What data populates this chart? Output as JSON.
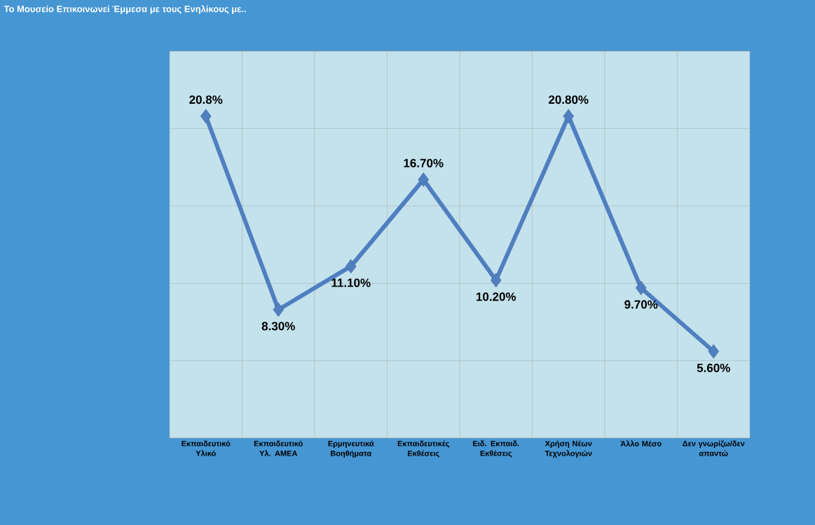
{
  "chart_data": {
    "type": "line",
    "title": "Το Μουσείο Επικοινωνεί Έμμεσα  με τους Ενηλίκους με..",
    "categories": [
      "Εκπαιδευτικό Υλικό",
      "Εκπαιδευτικό Υλ. ΑΜΕΑ",
      "Ερμηνευτικά Βοηθήματα",
      "Εκπαιδευτικές Εκθέσεις",
      "Ειδ. Εκπαιδ. Εκθέσεις",
      "Χρήση Νέων Τεχνολογιών",
      "Άλλο Μέσο",
      "Δεν γνωρίζω/δεν απαντώ"
    ],
    "values": [
      20.8,
      8.3,
      11.1,
      16.7,
      10.2,
      20.8,
      9.7,
      5.6
    ],
    "value_labels": [
      "20.8%",
      "8.30%",
      "11.10%",
      "16.70%",
      "10.20%",
      "20.80%",
      "9.70%",
      "5.60%"
    ],
    "color": "#4f7fc0",
    "marker": "diamond",
    "line_style": "solid",
    "ylim": [
      0,
      25
    ],
    "yticks": [
      {
        "value": 0,
        "label": null
      },
      {
        "value": 5,
        "label": null
      },
      {
        "value": 10,
        "label": null
      },
      {
        "value": 15,
        "label": null
      },
      {
        "value": 20,
        "label": null
      },
      {
        "value": 25,
        "label": null
      }
    ],
    "tick_labels": "x",
    "grid": true
  }
}
